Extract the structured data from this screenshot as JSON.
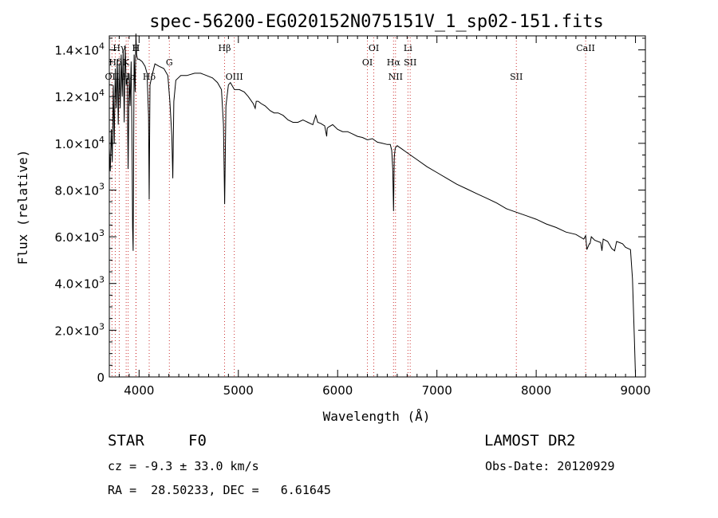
{
  "chart_data": {
    "type": "line",
    "title": "spec-56200-EG020152N075151V_1_sp02-151.fits",
    "xlabel": "Wavelength (Å)",
    "ylabel": "Flux (relative)",
    "xlim": [
      3700,
      9100
    ],
    "ylim": [
      0,
      14600
    ],
    "x_ticks": [
      4000,
      5000,
      6000,
      7000,
      8000,
      9000
    ],
    "x_minor_step": 100,
    "y_ticks": [
      {
        "value": 0,
        "mant": "0",
        "exp": ""
      },
      {
        "value": 2000,
        "mant": "2.0×10",
        "exp": "3"
      },
      {
        "value": 4000,
        "mant": "4.0×10",
        "exp": "3"
      },
      {
        "value": 6000,
        "mant": "6.0×10",
        "exp": "3"
      },
      {
        "value": 8000,
        "mant": "8.0×10",
        "exp": "3"
      },
      {
        "value": 10000,
        "mant": "1.0×10",
        "exp": "4"
      },
      {
        "value": 12000,
        "mant": "1.2×10",
        "exp": "4"
      },
      {
        "value": 14000,
        "mant": "1.4×10",
        "exp": "4"
      }
    ],
    "y_minor_step": 500,
    "grid": false,
    "line_color": "#000000",
    "line_marker_color": "#cc3333",
    "spectrum": {
      "x": [
        3700,
        3710,
        3720,
        3730,
        3740,
        3750,
        3760,
        3770,
        3780,
        3790,
        3800,
        3810,
        3820,
        3830,
        3840,
        3850,
        3860,
        3870,
        3880,
        3890,
        3900,
        3910,
        3920,
        3930,
        3935,
        3940,
        3950,
        3960,
        3968,
        3975,
        3985,
        4000,
        4030,
        4060,
        4080,
        4095,
        4102,
        4110,
        4130,
        4160,
        4200,
        4250,
        4290,
        4310,
        4330,
        4340,
        4350,
        4370,
        4420,
        4480,
        4560,
        4620,
        4680,
        4740,
        4790,
        4830,
        4850,
        4862,
        4875,
        4900,
        4920,
        4960,
        5010,
        5060,
        5100,
        5150,
        5170,
        5180,
        5200,
        5230,
        5270,
        5320,
        5360,
        5400,
        5450,
        5500,
        5550,
        5600,
        5650,
        5700,
        5750,
        5780,
        5800,
        5830,
        5870,
        5890,
        5895,
        5910,
        5950,
        6000,
        6050,
        6100,
        6150,
        6200,
        6250,
        6300,
        6350,
        6400,
        6450,
        6500,
        6530,
        6545,
        6555,
        6563,
        6570,
        6580,
        6600,
        6650,
        6700,
        6800,
        6900,
        7000,
        7100,
        7200,
        7300,
        7400,
        7500,
        7600,
        7700,
        7800,
        7900,
        8000,
        8100,
        8200,
        8300,
        8400,
        8480,
        8498,
        8510,
        8535,
        8542,
        8555,
        8590,
        8650,
        8662,
        8675,
        8720,
        8760,
        8790,
        8810,
        8840,
        8870,
        8900,
        8950,
        8970,
        8990,
        9000
      ],
      "y": [
        9800,
        8800,
        10600,
        9200,
        12500,
        10000,
        13200,
        11500,
        13600,
        10800,
        13400,
        11500,
        13800,
        12000,
        14000,
        10900,
        14200,
        12500,
        12800,
        8900,
        13000,
        11600,
        13500,
        9600,
        6400,
        5400,
        13800,
        12200,
        14700,
        13800,
        13600,
        13600,
        13500,
        13300,
        13000,
        11200,
        7600,
        12500,
        12900,
        13400,
        13300,
        13200,
        12900,
        11800,
        10300,
        8500,
        11800,
        12700,
        12900,
        12900,
        13000,
        13000,
        12900,
        12800,
        12600,
        12300,
        10800,
        7400,
        11600,
        12500,
        12600,
        12300,
        12300,
        12200,
        12000,
        11700,
        11500,
        11800,
        11800,
        11700,
        11600,
        11400,
        11300,
        11300,
        11200,
        11000,
        10900,
        10900,
        11000,
        10900,
        10800,
        11200,
        10900,
        10850,
        10750,
        10300,
        10650,
        10700,
        10800,
        10600,
        10500,
        10500,
        10400,
        10300,
        10250,
        10150,
        10200,
        10050,
        10000,
        9950,
        9950,
        9700,
        8900,
        7100,
        9400,
        9800,
        9900,
        9750,
        9600,
        9300,
        9000,
        8750,
        8500,
        8250,
        8050,
        7850,
        7650,
        7450,
        7200,
        7050,
        6900,
        6750,
        6550,
        6400,
        6200,
        6100,
        5900,
        6050,
        5450,
        5700,
        5700,
        6000,
        5850,
        5750,
        5400,
        5900,
        5800,
        5500,
        5400,
        5800,
        5750,
        5700,
        5550,
        5450,
        4200,
        1500,
        0
      ]
    },
    "lines": [
      {
        "name": "Hγ",
        "wl": 3800,
        "row": 0
      },
      {
        "name": "H",
        "wl": 3968,
        "row": 0
      },
      {
        "name": "H",
        "wl": 3970,
        "row": 0
      },
      {
        "name": "Hβ",
        "wl": 4861,
        "row": 0
      },
      {
        "name": "OI",
        "wl": 6364,
        "row": 0
      },
      {
        "name": "Li",
        "wl": 6708,
        "row": 0
      },
      {
        "name": "CaII",
        "wl": 8498,
        "row": 0
      },
      {
        "name": "Hδ",
        "wl": 3760,
        "row": 1
      },
      {
        "name": "K",
        "wl": 3870,
        "row": 1
      },
      {
        "name": "G",
        "wl": 4305,
        "row": 1
      },
      {
        "name": "OI",
        "wl": 6300,
        "row": 1
      },
      {
        "name": "Hα",
        "wl": 6563,
        "row": 1
      },
      {
        "name": "SII",
        "wl": 6731,
        "row": 1
      },
      {
        "name": "OII",
        "wl": 3727,
        "row": 2
      },
      {
        "name": "Hε",
        "wl": 3890,
        "row": 2
      },
      {
        "name": "Hδ",
        "wl": 4102,
        "row": 2
      },
      {
        "name": "OIII",
        "wl": 4959,
        "row": 2
      },
      {
        "name": "NII",
        "wl": 6583,
        "row": 2
      },
      {
        "name": "SII",
        "wl": 7800,
        "row": 2
      }
    ]
  },
  "info": {
    "class": "STAR",
    "subclass": "F0",
    "survey": "LAMOST DR2",
    "cz": "cz = -9.3 ± 33.0 km/s",
    "obs_date": "Obs-Date: 20120929",
    "coords": "RA =  28.50233, DEC =   6.61645"
  }
}
